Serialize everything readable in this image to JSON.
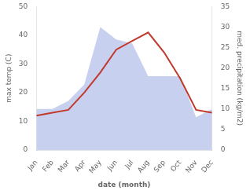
{
  "chart_data": {
    "type": "line",
    "xlabel": "date (month)",
    "ylabel": "max temp (C)",
    "y2label": "med. precipitation (kg/m2)",
    "categories": [
      "Jan",
      "Feb",
      "Mar",
      "Apr",
      "May",
      "Jun",
      "Jul",
      "Aug",
      "Sep",
      "Oct",
      "Nov",
      "Dec"
    ],
    "series": [
      {
        "type": "line",
        "color": "#c0392b",
        "values": [
          12,
          13,
          14,
          20,
          27,
          35,
          38,
          41,
          34,
          25,
          14,
          13
        ]
      },
      {
        "type": "area",
        "color": "#c8d0f0",
        "axis": "y2",
        "values": [
          10,
          10,
          12,
          16,
          30,
          27,
          26,
          18,
          18,
          18,
          8,
          10
        ]
      }
    ],
    "ylim": [
      0,
      50
    ],
    "yticks": [
      0,
      10,
      20,
      30,
      40,
      50
    ],
    "y2lim": [
      0,
      35
    ],
    "y2ticks": [
      0,
      5,
      10,
      15,
      20,
      25,
      30,
      35
    ],
    "grid": false
  }
}
